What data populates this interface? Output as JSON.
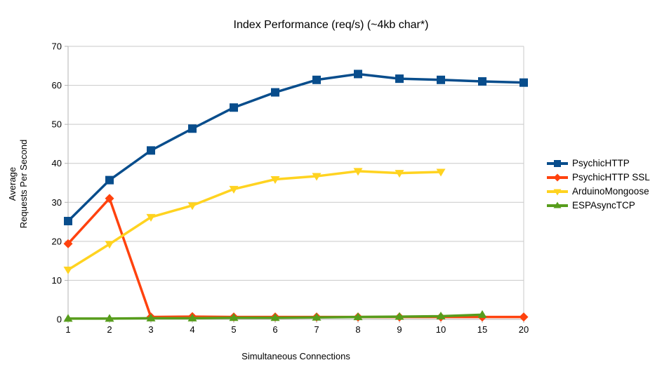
{
  "chart_data": {
    "type": "line",
    "title": "Index Performance (req/s) (~4kb char*)",
    "xlabel": "Simultaneous Connections",
    "ylabel": "Average Requests Per Second",
    "ylabel_lines": [
      "Average",
      "Requests Per Second"
    ],
    "categories": [
      1,
      2,
      3,
      4,
      5,
      6,
      7,
      8,
      9,
      10,
      15,
      20
    ],
    "x_axis_type": "categorical-equal-spacing",
    "ylim": [
      0,
      70
    ],
    "yticks": [
      0,
      10,
      20,
      30,
      40,
      50,
      60,
      70
    ],
    "grid": "horizontal",
    "legend_position": "right",
    "colors": {
      "grid": "#c9c9c9",
      "axis": "#b3b3b3",
      "text": "#000000",
      "background": "#ffffff"
    },
    "series": [
      {
        "name": "PsychicHTTP",
        "color": "#084d8c",
        "marker": "square",
        "values": [
          25.2,
          35.7,
          43.3,
          48.9,
          54.3,
          58.2,
          61.4,
          62.9,
          61.7,
          61.4,
          61.0,
          60.7
        ]
      },
      {
        "name": "PsychicHTTP SSL",
        "color": "#ff420e",
        "marker": "diamond",
        "values": [
          19.4,
          31.0,
          0.6,
          0.7,
          0.6,
          0.6,
          0.6,
          0.6,
          0.6,
          0.6,
          0.6,
          0.6
        ]
      },
      {
        "name": "ArduinoMongoose",
        "color": "#ffd320",
        "marker": "triangle-down",
        "values": [
          12.7,
          19.3,
          26.2,
          29.2,
          33.4,
          35.9,
          36.7,
          38.0,
          37.5,
          37.8,
          null,
          null
        ]
      },
      {
        "name": "ESPAsyncTCP",
        "color": "#579d1c",
        "marker": "triangle-up",
        "values": [
          0.2,
          0.2,
          0.3,
          0.3,
          0.4,
          0.4,
          0.5,
          0.6,
          0.7,
          0.8,
          1.2,
          null
        ]
      }
    ]
  }
}
